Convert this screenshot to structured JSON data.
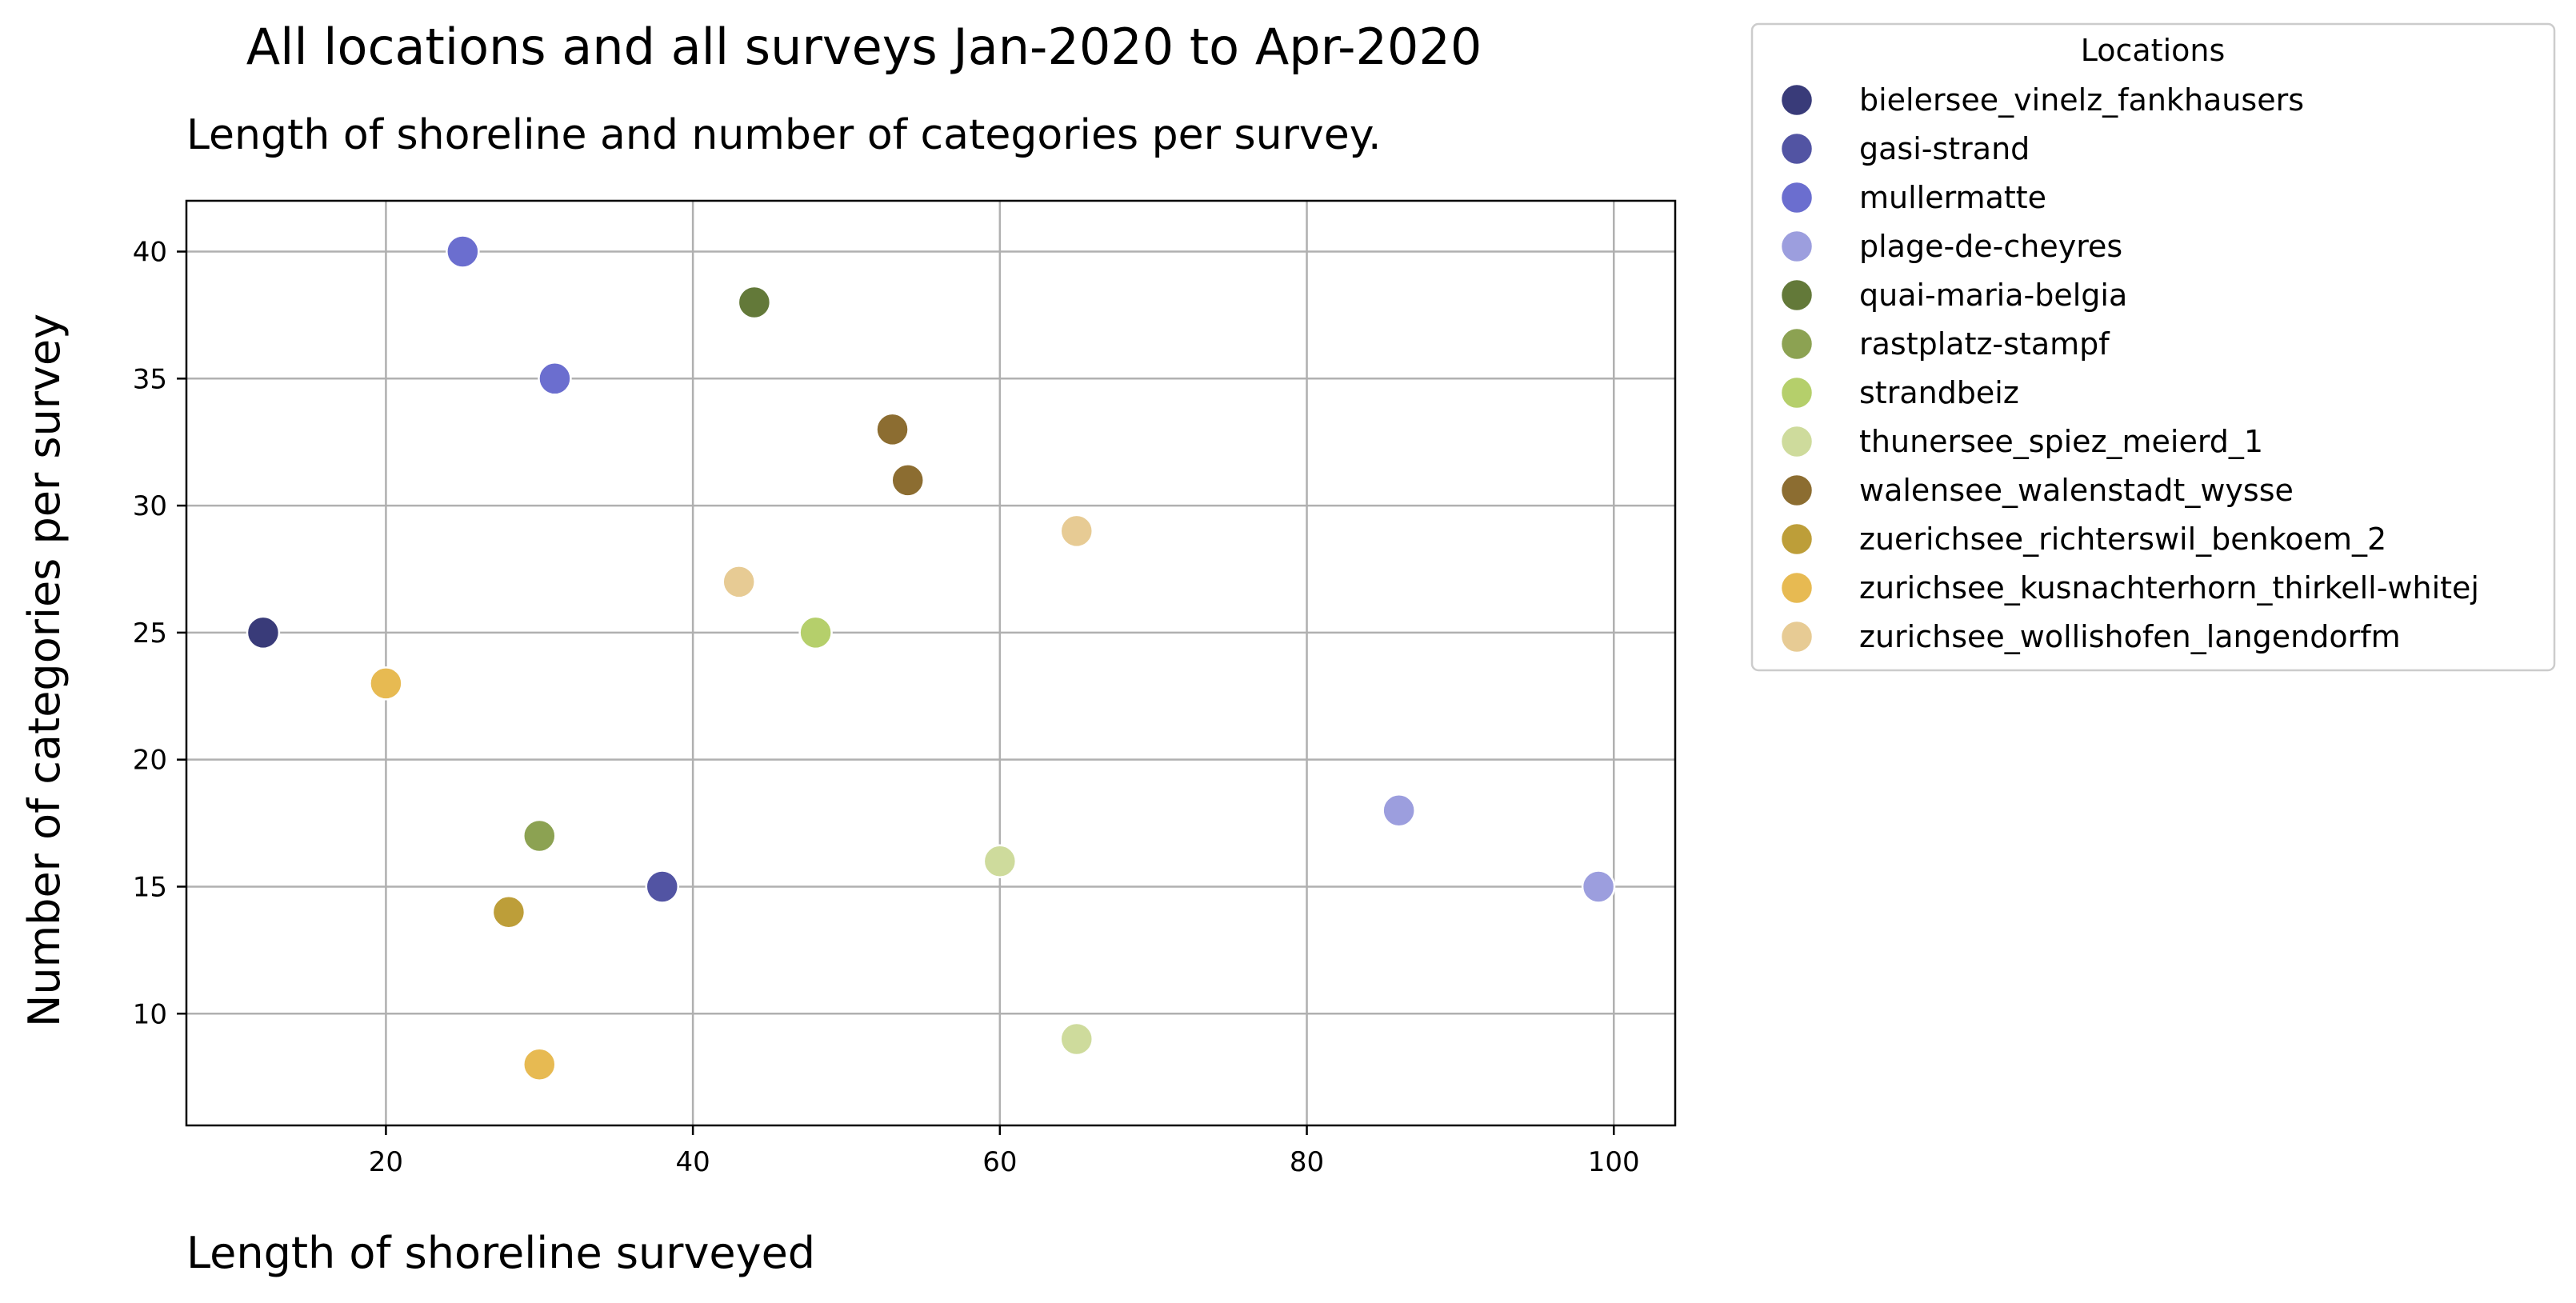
{
  "chart_data": {
    "type": "scatter",
    "title": "All locations and all surveys Jan-2020 to Apr-2020",
    "subtitle": "Length of shoreline and number of categories per survey.",
    "xlabel": "Length of shoreline surveyed",
    "ylabel": "Number of categories per survey",
    "xlim": [
      7,
      104
    ],
    "ylim": [
      5.6,
      42
    ],
    "x_ticks": [
      20,
      40,
      60,
      80,
      100
    ],
    "y_ticks": [
      10,
      15,
      20,
      25,
      30,
      35,
      40
    ],
    "grid": true,
    "legend": {
      "title": "Locations",
      "placement": "outside-right"
    },
    "series": [
      {
        "name": "bielersee_vinelz_fankhausers",
        "color": "#393b79",
        "points": [
          {
            "x": 12,
            "y": 25
          }
        ]
      },
      {
        "name": "gasi-strand",
        "color": "#5254a3",
        "points": [
          {
            "x": 38,
            "y": 15
          }
        ]
      },
      {
        "name": "mullermatte",
        "color": "#6b6ecf",
        "points": [
          {
            "x": 25,
            "y": 40
          },
          {
            "x": 31,
            "y": 35
          }
        ]
      },
      {
        "name": "plage-de-cheyres",
        "color": "#9c9ede",
        "points": [
          {
            "x": 86,
            "y": 18
          },
          {
            "x": 99,
            "y": 15
          }
        ]
      },
      {
        "name": "quai-maria-belgia",
        "color": "#637939",
        "points": [
          {
            "x": 44,
            "y": 38
          }
        ]
      },
      {
        "name": "rastplatz-stampf",
        "color": "#8ca252",
        "points": [
          {
            "x": 30,
            "y": 17
          }
        ]
      },
      {
        "name": "strandbeiz",
        "color": "#b5cf6b",
        "points": [
          {
            "x": 48,
            "y": 25
          }
        ]
      },
      {
        "name": "thunersee_spiez_meierd_1",
        "color": "#cedb9c",
        "points": [
          {
            "x": 60,
            "y": 16
          },
          {
            "x": 65,
            "y": 9
          }
        ]
      },
      {
        "name": "walensee_walenstadt_wysse",
        "color": "#8c6d31",
        "points": [
          {
            "x": 53,
            "y": 33
          },
          {
            "x": 54,
            "y": 31
          }
        ]
      },
      {
        "name": "zuerichsee_richterswil_benkoem_2",
        "color": "#bd9e39",
        "points": [
          {
            "x": 28,
            "y": 14
          }
        ]
      },
      {
        "name": "zurichsee_kusnachterhorn_thirkell-whitej",
        "color": "#e7ba52",
        "points": [
          {
            "x": 20,
            "y": 23
          },
          {
            "x": 30,
            "y": 8
          }
        ]
      },
      {
        "name": "zurichsee_wollishofen_langendorfm",
        "color": "#e7cb94",
        "points": [
          {
            "x": 43,
            "y": 27
          },
          {
            "x": 65,
            "y": 29
          }
        ]
      }
    ]
  }
}
